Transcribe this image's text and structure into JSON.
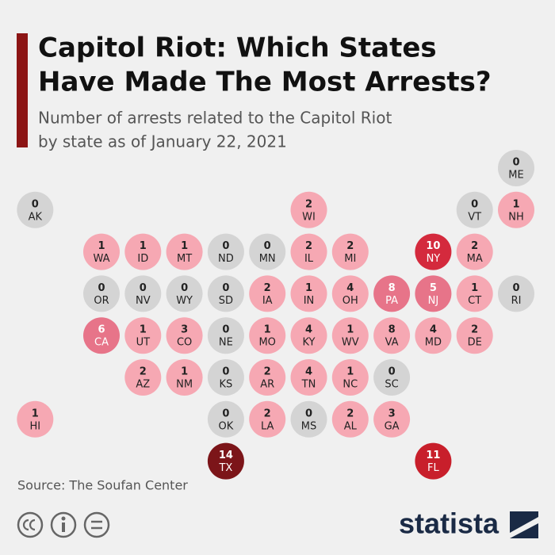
{
  "header": {
    "title": [
      "Capitol Riot: Which States",
      "Have Made The Most Arrests?"
    ],
    "subtitle": [
      "Number of arrests related to the Capitol Riot",
      "by state as of January 22, 2021"
    ]
  },
  "map": {
    "tiles": [
      {
        "state": "ME",
        "value": 0,
        "color": "#d4d4d4"
      },
      {
        "state": "AK",
        "value": 0,
        "color": "#d4d4d4"
      },
      {
        "state": "WI",
        "value": 2,
        "color": "#f6a8b3"
      },
      {
        "state": "VT",
        "value": 0,
        "color": "#d4d4d4"
      },
      {
        "state": "NH",
        "value": 1,
        "color": "#f6a8b3"
      },
      {
        "state": "WA",
        "value": 1,
        "color": "#f6a8b3"
      },
      {
        "state": "ID",
        "value": 1,
        "color": "#f6a8b3"
      },
      {
        "state": "MT",
        "value": 1,
        "color": "#f6a8b3"
      },
      {
        "state": "ND",
        "value": 0,
        "color": "#d4d4d4"
      },
      {
        "state": "MN",
        "value": 0,
        "color": "#d4d4d4"
      },
      {
        "state": "IL",
        "value": 2,
        "color": "#f6a8b3"
      },
      {
        "state": "MI",
        "value": 2,
        "color": "#f6a8b3"
      },
      {
        "state": "NY",
        "value": 10,
        "color": "#d42a3d"
      },
      {
        "state": "MA",
        "value": 2,
        "color": "#f6a8b3"
      },
      {
        "state": "OR",
        "value": 0,
        "color": "#d4d4d4"
      },
      {
        "state": "NV",
        "value": 0,
        "color": "#d4d4d4"
      },
      {
        "state": "WY",
        "value": 0,
        "color": "#d4d4d4"
      },
      {
        "state": "SD",
        "value": 0,
        "color": "#d4d4d4"
      },
      {
        "state": "IA",
        "value": 2,
        "color": "#f6a8b3"
      },
      {
        "state": "IN",
        "value": 1,
        "color": "#f6a8b3"
      },
      {
        "state": "OH",
        "value": 4,
        "color": "#f6a8b3"
      },
      {
        "state": "PA",
        "value": 8,
        "color": "#e77489"
      },
      {
        "state": "NJ",
        "value": 5,
        "color": "#e77489"
      },
      {
        "state": "CT",
        "value": 1,
        "color": "#f6a8b3"
      },
      {
        "state": "RI",
        "value": 0,
        "color": "#d4d4d4"
      },
      {
        "state": "CA",
        "value": 6,
        "color": "#e77489"
      },
      {
        "state": "UT",
        "value": 1,
        "color": "#f6a8b3"
      },
      {
        "state": "CO",
        "value": 3,
        "color": "#f6a8b3"
      },
      {
        "state": "NE",
        "value": 0,
        "color": "#d4d4d4"
      },
      {
        "state": "MO",
        "value": 1,
        "color": "#f6a8b3"
      },
      {
        "state": "KY",
        "value": 4,
        "color": "#f6a8b3"
      },
      {
        "state": "WV",
        "value": 1,
        "color": "#f6a8b3"
      },
      {
        "state": "VA",
        "value": 8,
        "color": "#f6a8b3"
      },
      {
        "state": "MD",
        "value": 4,
        "color": "#f6a8b3"
      },
      {
        "state": "DE",
        "value": 2,
        "color": "#f6a8b3"
      },
      {
        "state": "AZ",
        "value": 2,
        "color": "#f6a8b3"
      },
      {
        "state": "NM",
        "value": 1,
        "color": "#f6a8b3"
      },
      {
        "state": "KS",
        "value": 0,
        "color": "#d4d4d4"
      },
      {
        "state": "AR",
        "value": 2,
        "color": "#f6a8b3"
      },
      {
        "state": "TN",
        "value": 4,
        "color": "#f6a8b3"
      },
      {
        "state": "NC",
        "value": 1,
        "color": "#f6a8b3"
      },
      {
        "state": "SC",
        "value": 0,
        "color": "#d4d4d4"
      },
      {
        "state": "HI",
        "value": 1,
        "color": "#f6a8b3"
      },
      {
        "state": "OK",
        "value": 0,
        "color": "#d4d4d4"
      },
      {
        "state": "LA",
        "value": 2,
        "color": "#f6a8b3"
      },
      {
        "state": "MS",
        "value": 0,
        "color": "#d4d4d4"
      },
      {
        "state": "AL",
        "value": 2,
        "color": "#f6a8b3"
      },
      {
        "state": "GA",
        "value": 3,
        "color": "#f6a8b3"
      },
      {
        "state": "TX",
        "value": 14,
        "color": "#7c1519"
      },
      {
        "state": "FL",
        "value": 11,
        "color": "#c81f2b"
      }
    ]
  },
  "footer": {
    "source": "Source: The Soufan Center",
    "brand": "statista"
  }
}
